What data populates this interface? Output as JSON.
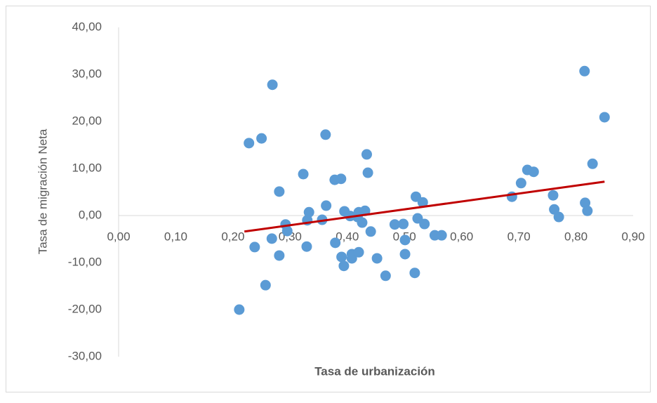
{
  "chart_data": {
    "type": "scatter",
    "xlabel": "Tasa de urbanización",
    "ylabel": "Tasa de migración Neta",
    "color": "#5b9bd5",
    "x": [
      0.211,
      0.228,
      0.238,
      0.25,
      0.257,
      0.268,
      0.269,
      0.281,
      0.281,
      0.292,
      0.295,
      0.323,
      0.329,
      0.33,
      0.333,
      0.356,
      0.362,
      0.363,
      0.378,
      0.379,
      0.389,
      0.39,
      0.394,
      0.395,
      0.405,
      0.408,
      0.408,
      0.418,
      0.42,
      0.42,
      0.426,
      0.431,
      0.434,
      0.436,
      0.441,
      0.452,
      0.467,
      0.483,
      0.498,
      0.501,
      0.501,
      0.518,
      0.52,
      0.523,
      0.532,
      0.535,
      0.553,
      0.565,
      0.688,
      0.704,
      0.715,
      0.726,
      0.76,
      0.762,
      0.77,
      0.815,
      0.816,
      0.82,
      0.829,
      0.85
    ],
    "values": [
      -20.0,
      15.4,
      -6.7,
      16.4,
      -14.8,
      -4.9,
      27.8,
      5.1,
      -8.5,
      -1.9,
      -3.3,
      8.8,
      -6.6,
      -1.0,
      0.7,
      -0.9,
      17.2,
      2.1,
      7.6,
      -5.8,
      7.8,
      -8.8,
      -10.7,
      0.9,
      -0.1,
      -8.2,
      -9.1,
      -0.3,
      -7.8,
      0.7,
      -1.5,
      1.0,
      13.0,
      9.1,
      -3.4,
      -9.1,
      -12.8,
      -1.9,
      -1.8,
      -8.2,
      -5.2,
      -12.2,
      4.0,
      -0.6,
      2.8,
      -1.8,
      -4.2,
      -4.2,
      4.0,
      6.9,
      9.7,
      9.3,
      4.3,
      1.3,
      -0.3,
      30.7,
      2.7,
      1.0,
      11.0,
      20.9
    ],
    "trendline": {
      "color": "#c00000",
      "x": [
        0.22,
        0.85
      ],
      "values": [
        -3.4,
        7.2
      ]
    },
    "xlim": [
      0,
      0.9
    ],
    "xticks": [
      {
        "value": 0,
        "label": "0,00"
      },
      {
        "value": 0.1,
        "label": "0,10"
      },
      {
        "value": 0.2,
        "label": "0,20"
      },
      {
        "value": 0.3,
        "label": "0,30"
      },
      {
        "value": 0.4,
        "label": "0,40"
      },
      {
        "value": 0.5,
        "label": "0,50"
      },
      {
        "value": 0.6,
        "label": "0,60"
      },
      {
        "value": 0.7,
        "label": "0,70"
      },
      {
        "value": 0.8,
        "label": "0,80"
      },
      {
        "value": 0.9,
        "label": "0,90"
      }
    ],
    "ylim": [
      -30,
      40
    ],
    "yticks": [
      {
        "value": -30,
        "label": "-30,00"
      },
      {
        "value": -20,
        "label": "-20,00"
      },
      {
        "value": -10,
        "label": "-10,00"
      },
      {
        "value": 0,
        "label": "0,00"
      },
      {
        "value": 10,
        "label": "10,00"
      },
      {
        "value": 20,
        "label": "20,00"
      },
      {
        "value": 30,
        "label": "30,00"
      },
      {
        "value": 40,
        "label": "40,00"
      }
    ],
    "grid": false
  }
}
